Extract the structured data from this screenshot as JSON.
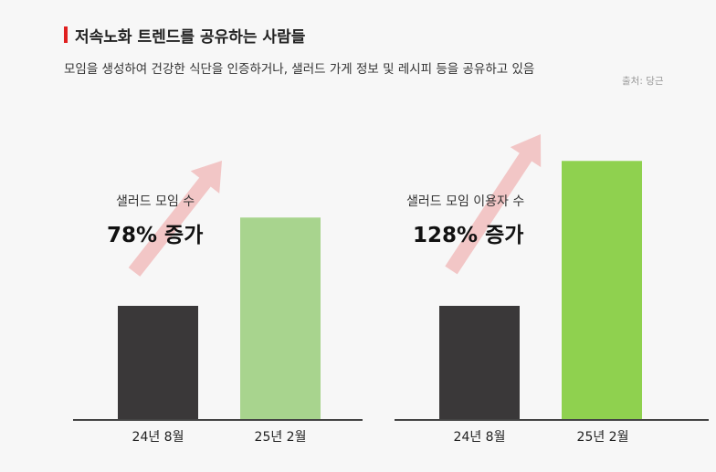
{
  "header": {
    "title": "저속노화 트렌드를 공유하는 사람들",
    "subtitle": "모임을 생성하여 건강한 식단을 인증하거나, 샐러드 가게 정보 및 레시피 등을 공유하고 있음",
    "source": "출처: 당근"
  },
  "colors": {
    "accent": "#e02020",
    "bar_dark": "#3a3839",
    "bar_light_green": "#a8d48e",
    "bar_bright_green": "#8fd14f",
    "arrow": "#f2c6c6",
    "axis": "#444444"
  },
  "chart_data": [
    {
      "type": "bar",
      "title": "",
      "categories": [
        "24년 8월",
        "25년 2월"
      ],
      "values": [
        1,
        1.78
      ],
      "annotation": {
        "label": "샐러드 모임 수",
        "value": "78% 증가"
      }
    },
    {
      "type": "bar",
      "title": "",
      "categories": [
        "24년 8월",
        "25년 2월"
      ],
      "values": [
        1,
        2.28
      ],
      "annotation": {
        "label": "샐러드 모임 이용자 수",
        "value": "128% 증가"
      }
    }
  ]
}
